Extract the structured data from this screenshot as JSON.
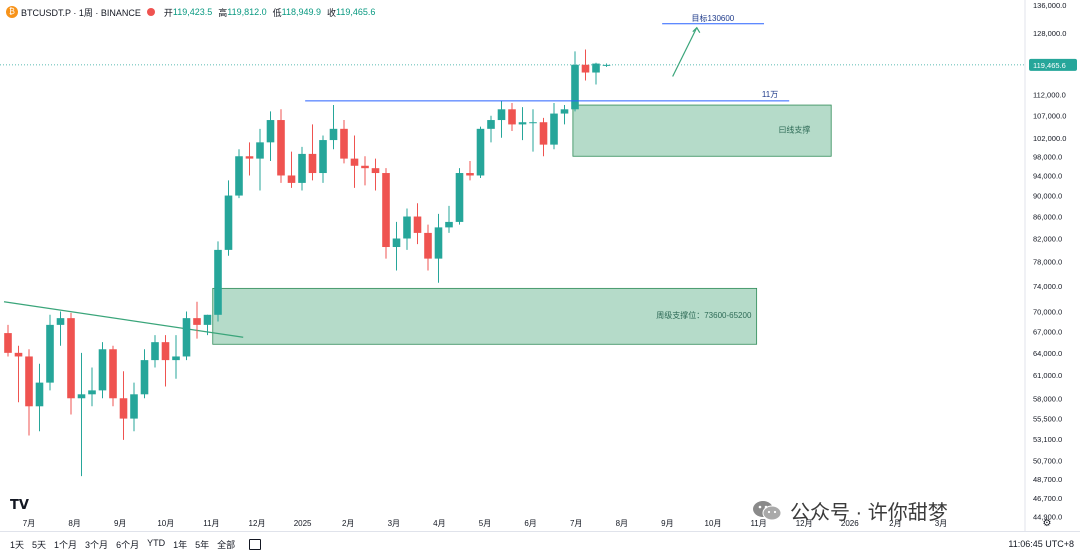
{
  "header": {
    "symbol": "BTCUSDT.P · 1周 · BINANCE",
    "open_label": "开",
    "open": "119,423.5",
    "high_label": "高",
    "high": "119,812.0",
    "low_label": "低",
    "low": "118,949.9",
    "close_label": "收",
    "close": "119,465.6"
  },
  "colors": {
    "up": "#26a69a",
    "down": "#ef5350",
    "zone": "#a8d5c0",
    "line_blue": "#2962ff"
  },
  "chart_data": {
    "type": "candlestick",
    "y_axis": {
      "scale": "log",
      "ticks": [
        "136,000.0",
        "128,000.0",
        "119,465.6",
        "112,000.0",
        "107,000.0",
        "102,000.0",
        "98,000.0",
        "94,000.0",
        "90,000.0",
        "86,000.0",
        "82,000.0",
        "78,000.0",
        "74,000.0",
        "70,000.0",
        "67,000.0",
        "64,000.0",
        "61,000.0",
        "58,000.0",
        "55,500.0",
        "53,100.0",
        "50,700.0",
        "48,700.0",
        "46,700.0",
        "44,900.0"
      ],
      "range": [
        43500,
        137500
      ]
    },
    "x_axis": {
      "ticks": [
        "7月",
        "8月",
        "9月",
        "10月",
        "11月",
        "12月",
        "2025",
        "2月",
        "3月",
        "4月",
        "5月",
        "6月",
        "7月",
        "8月",
        "9月",
        "10月",
        "11月",
        "12月",
        "2026",
        "2月",
        "3月"
      ]
    },
    "last_price": "119,465.6",
    "candles": [
      {
        "o": 66800,
        "h": 68000,
        "l": 63500,
        "c": 64000
      },
      {
        "o": 64000,
        "h": 65000,
        "l": 57500,
        "c": 63500
      },
      {
        "o": 63500,
        "h": 64500,
        "l": 53500,
        "c": 57000
      },
      {
        "o": 57000,
        "h": 62500,
        "l": 54000,
        "c": 60000
      },
      {
        "o": 60000,
        "h": 69500,
        "l": 59000,
        "c": 68000
      },
      {
        "o": 68000,
        "h": 70000,
        "l": 65000,
        "c": 69000
      },
      {
        "o": 69000,
        "h": 69800,
        "l": 56000,
        "c": 58000
      },
      {
        "o": 58000,
        "h": 64000,
        "l": 49000,
        "c": 58500
      },
      {
        "o": 58500,
        "h": 62000,
        "l": 57000,
        "c": 59000
      },
      {
        "o": 59000,
        "h": 65500,
        "l": 58000,
        "c": 64500
      },
      {
        "o": 64500,
        "h": 65000,
        "l": 57000,
        "c": 58000
      },
      {
        "o": 58000,
        "h": 61500,
        "l": 53000,
        "c": 55500
      },
      {
        "o": 55500,
        "h": 60000,
        "l": 54000,
        "c": 58500
      },
      {
        "o": 58500,
        "h": 64500,
        "l": 58000,
        "c": 63000
      },
      {
        "o": 63000,
        "h": 66500,
        "l": 62000,
        "c": 65500
      },
      {
        "o": 65500,
        "h": 66500,
        "l": 59500,
        "c": 63000
      },
      {
        "o": 63000,
        "h": 66500,
        "l": 60500,
        "c": 63500
      },
      {
        "o": 63500,
        "h": 70000,
        "l": 63000,
        "c": 69000
      },
      {
        "o": 69000,
        "h": 71500,
        "l": 66000,
        "c": 68000
      },
      {
        "o": 68000,
        "h": 69500,
        "l": 66500,
        "c": 69500
      },
      {
        "o": 69500,
        "h": 81500,
        "l": 68500,
        "c": 80000
      },
      {
        "o": 80000,
        "h": 93000,
        "l": 79000,
        "c": 90000
      },
      {
        "o": 90000,
        "h": 99500,
        "l": 89500,
        "c": 98000
      },
      {
        "o": 98000,
        "h": 101000,
        "l": 94000,
        "c": 97500
      },
      {
        "o": 97500,
        "h": 104000,
        "l": 91000,
        "c": 101000
      },
      {
        "o": 101000,
        "h": 108000,
        "l": 97000,
        "c": 106000
      },
      {
        "o": 106000,
        "h": 108500,
        "l": 92500,
        "c": 94000
      },
      {
        "o": 94000,
        "h": 99000,
        "l": 91500,
        "c": 92500
      },
      {
        "o": 92500,
        "h": 100000,
        "l": 91000,
        "c": 98500
      },
      {
        "o": 98500,
        "h": 105000,
        "l": 93000,
        "c": 94500
      },
      {
        "o": 94500,
        "h": 102500,
        "l": 92500,
        "c": 101500
      },
      {
        "o": 101500,
        "h": 109500,
        "l": 99500,
        "c": 104000
      },
      {
        "o": 104000,
        "h": 106000,
        "l": 96500,
        "c": 97500
      },
      {
        "o": 97500,
        "h": 102500,
        "l": 91500,
        "c": 96000
      },
      {
        "o": 96000,
        "h": 98000,
        "l": 92000,
        "c": 95500
      },
      {
        "o": 95500,
        "h": 97500,
        "l": 91000,
        "c": 94500
      },
      {
        "o": 94500,
        "h": 95500,
        "l": 78500,
        "c": 80500
      },
      {
        "o": 80500,
        "h": 85000,
        "l": 76500,
        "c": 82000
      },
      {
        "o": 82000,
        "h": 87500,
        "l": 80000,
        "c": 86000
      },
      {
        "o": 86000,
        "h": 88500,
        "l": 81000,
        "c": 83000
      },
      {
        "o": 83000,
        "h": 84500,
        "l": 76500,
        "c": 78500
      },
      {
        "o": 78500,
        "h": 86500,
        "l": 74500,
        "c": 84000
      },
      {
        "o": 84000,
        "h": 88000,
        "l": 83000,
        "c": 85000
      },
      {
        "o": 85000,
        "h": 95500,
        "l": 84500,
        "c": 94500
      },
      {
        "o": 94500,
        "h": 97000,
        "l": 93000,
        "c": 94000
      },
      {
        "o": 94000,
        "h": 104500,
        "l": 93500,
        "c": 104000
      },
      {
        "o": 104000,
        "h": 107000,
        "l": 101000,
        "c": 106000
      },
      {
        "o": 106000,
        "h": 110500,
        "l": 102000,
        "c": 108500
      },
      {
        "o": 108500,
        "h": 110000,
        "l": 103500,
        "c": 105000
      },
      {
        "o": 105000,
        "h": 109000,
        "l": 101500,
        "c": 105500
      },
      {
        "o": 105500,
        "h": 108500,
        "l": 99000,
        "c": 105500
      },
      {
        "o": 105500,
        "h": 106500,
        "l": 98000,
        "c": 100500
      },
      {
        "o": 100500,
        "h": 110000,
        "l": 99500,
        "c": 107500
      },
      {
        "o": 107500,
        "h": 109500,
        "l": 105000,
        "c": 108500
      },
      {
        "o": 108500,
        "h": 123000,
        "l": 108000,
        "c": 119500
      },
      {
        "o": 119500,
        "h": 123500,
        "l": 115500,
        "c": 117500
      },
      {
        "o": 117500,
        "h": 120000,
        "l": 114500,
        "c": 119800
      },
      {
        "o": 119423.5,
        "h": 119812,
        "l": 118949.9,
        "c": 119465.6
      }
    ],
    "annotations": {
      "target_label": "目标130600",
      "line_110k_label": "11万",
      "daily_support_label": "曰线支撑",
      "weekly_support_label": "周级支撑位：73600-65200"
    }
  },
  "bottom_bar": {
    "ranges": [
      "1天",
      "5天",
      "1个月",
      "3个月",
      "6个月",
      "YTD",
      "1年",
      "5年",
      "全部"
    ],
    "clock": "11:06:45 UTC+8"
  },
  "logo": "TV",
  "watermark": "公众号 · 许你甜梦"
}
